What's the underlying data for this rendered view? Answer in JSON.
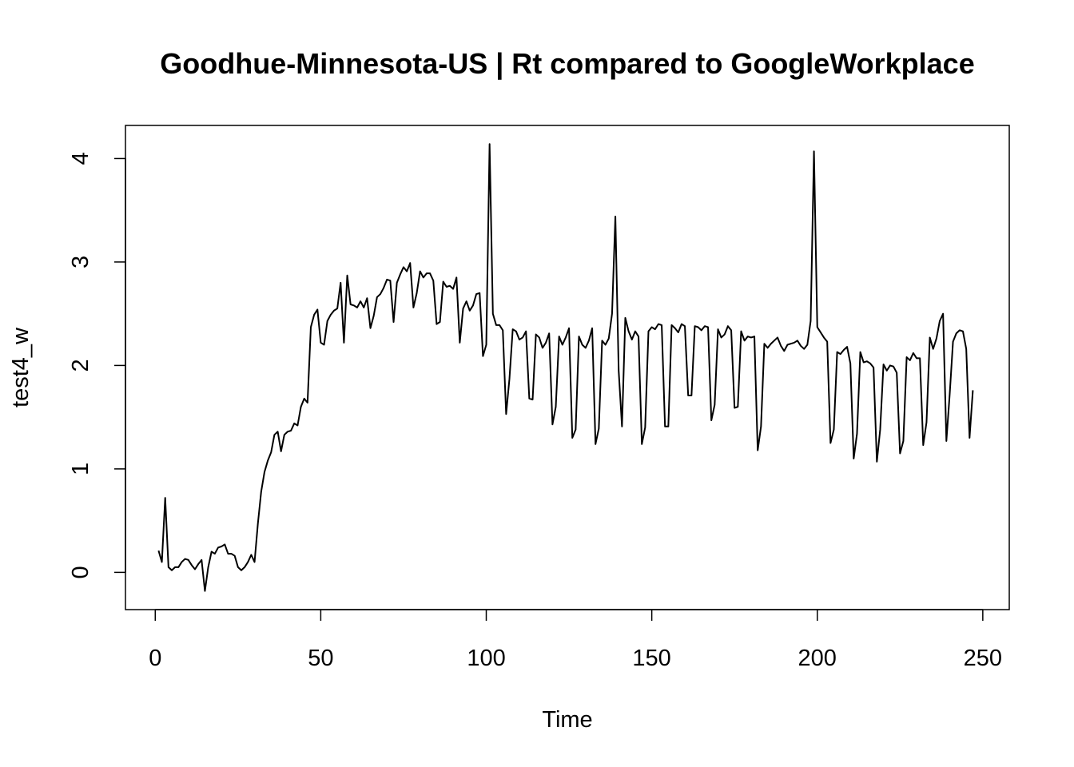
{
  "chart_data": {
    "type": "line",
    "title": "Goodhue-Minnesota-US | Rt compared to GoogleWorkplace",
    "xlabel": "Time",
    "ylabel": "test4_w",
    "xlim": [
      -9,
      258
    ],
    "ylim": [
      -0.36,
      4.32
    ],
    "x_ticks": [
      0,
      50,
      100,
      150,
      200,
      250
    ],
    "y_ticks": [
      0,
      1,
      2,
      3,
      4
    ],
    "x_tick_labels": [
      "0",
      "50",
      "100",
      "150",
      "200",
      "250"
    ],
    "y_tick_labels": [
      "0",
      "1",
      "2",
      "3",
      "4"
    ],
    "grid": false,
    "series": [
      {
        "name": "test4_w",
        "x_start": 1,
        "values": [
          0.21,
          0.1,
          0.72,
          0.05,
          0.02,
          0.05,
          0.05,
          0.1,
          0.13,
          0.12,
          0.07,
          0.03,
          0.08,
          0.12,
          -0.18,
          0.05,
          0.2,
          0.18,
          0.24,
          0.25,
          0.27,
          0.18,
          0.18,
          0.16,
          0.05,
          0.02,
          0.05,
          0.1,
          0.17,
          0.1,
          0.47,
          0.78,
          0.97,
          1.08,
          1.16,
          1.33,
          1.36,
          1.17,
          1.33,
          1.36,
          1.37,
          1.44,
          1.42,
          1.6,
          1.68,
          1.64,
          2.37,
          2.49,
          2.54,
          2.22,
          2.2,
          2.43,
          2.49,
          2.53,
          2.55,
          2.8,
          2.22,
          2.87,
          2.59,
          2.58,
          2.56,
          2.62,
          2.56,
          2.65,
          2.36,
          2.48,
          2.66,
          2.69,
          2.75,
          2.83,
          2.82,
          2.42,
          2.8,
          2.88,
          2.95,
          2.91,
          2.99,
          2.56,
          2.7,
          2.91,
          2.85,
          2.89,
          2.89,
          2.82,
          2.4,
          2.42,
          2.81,
          2.76,
          2.77,
          2.74,
          2.85,
          2.22,
          2.55,
          2.62,
          2.53,
          2.58,
          2.69,
          2.7,
          2.09,
          2.2,
          4.14,
          2.5,
          2.39,
          2.39,
          2.34,
          1.53,
          1.87,
          2.35,
          2.33,
          2.25,
          2.27,
          2.33,
          1.68,
          1.67,
          2.3,
          2.27,
          2.17,
          2.22,
          2.31,
          1.43,
          1.6,
          2.28,
          2.2,
          2.27,
          2.36,
          1.3,
          1.38,
          2.28,
          2.2,
          2.17,
          2.24,
          2.36,
          1.24,
          1.39,
          2.24,
          2.2,
          2.26,
          2.5,
          3.44,
          1.95,
          1.41,
          2.46,
          2.33,
          2.25,
          2.33,
          2.28,
          1.24,
          1.4,
          2.33,
          2.37,
          2.35,
          2.4,
          2.39,
          1.41,
          1.41,
          2.39,
          2.36,
          2.32,
          2.4,
          2.38,
          1.71,
          1.71,
          2.38,
          2.37,
          2.34,
          2.38,
          2.37,
          1.47,
          1.62,
          2.35,
          2.27,
          2.3,
          2.38,
          2.34,
          1.59,
          1.6,
          2.33,
          2.24,
          2.28,
          2.27,
          2.28,
          1.18,
          1.41,
          2.21,
          2.17,
          2.21,
          2.24,
          2.27,
          2.19,
          2.14,
          2.2,
          2.21,
          2.22,
          2.24,
          2.19,
          2.16,
          2.2,
          2.43,
          4.07,
          2.37,
          2.32,
          2.27,
          2.23,
          1.25,
          1.38,
          2.13,
          2.11,
          2.15,
          2.18,
          2.02,
          1.1,
          1.34,
          2.13,
          2.03,
          2.04,
          2.02,
          1.98,
          1.07,
          1.38,
          2.01,
          1.95,
          2.0,
          1.99,
          1.93,
          1.15,
          1.27,
          2.08,
          2.05,
          2.12,
          2.07,
          2.07,
          1.23,
          1.45,
          2.27,
          2.16,
          2.26,
          2.43,
          2.5,
          1.27,
          1.72,
          2.23,
          2.31,
          2.34,
          2.33,
          2.16,
          1.3,
          1.76
        ]
      }
    ]
  }
}
